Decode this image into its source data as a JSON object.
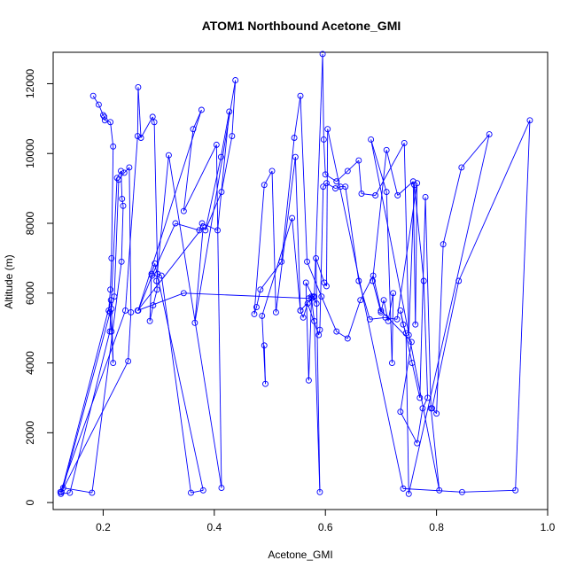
{
  "chart_data": {
    "type": "line",
    "title": "ATOM1 Northbound Acetone_GMI",
    "xlabel": "Acetone_GMI",
    "ylabel": "Altitude (m)",
    "xlim": [
      0.11,
      1.0
    ],
    "ylim": [
      -200,
      12900
    ],
    "x_ticks": [
      0.2,
      0.4,
      0.6,
      0.8,
      1.0
    ],
    "x_tick_labels": [
      "0.2",
      "0.4",
      "0.6",
      "0.8",
      "1.0"
    ],
    "y_ticks": [
      0,
      2000,
      4000,
      6000,
      8000,
      10000,
      12000
    ],
    "y_tick_labels": [
      "0",
      "2000",
      "4000",
      "6000",
      "8000",
      "10000",
      "12000"
    ],
    "grid": false,
    "legend": "none",
    "markers": "open-circle",
    "colors": {
      "series": "#0000ff",
      "axis": "#000000",
      "background": "#ffffff"
    },
    "series": [
      {
        "x": [
          0.182,
          0.192,
          0.2,
          0.202,
          0.203,
          0.213,
          0.218,
          0.215,
          0.213,
          0.21,
          0.212,
          0.215,
          0.218,
          0.215,
          0.214,
          0.124,
          0.14,
          0.212,
          0.225,
          0.232,
          0.234,
          0.236,
          0.233,
          0.18,
          0.128,
          0.22,
          0.228,
          0.238,
          0.247,
          0.25,
          0.245,
          0.125,
          0.123,
          0.24,
          0.262,
          0.263,
          0.268,
          0.289,
          0.292,
          0.298,
          0.305,
          0.358,
          0.38,
          0.293,
          0.287,
          0.284,
          0.29,
          0.297,
          0.296,
          0.318,
          0.413,
          0.404,
          0.345,
          0.362,
          0.377,
          0.263,
          0.288,
          0.33,
          0.373,
          0.378,
          0.406,
          0.427,
          0.412,
          0.384,
          0.413,
          0.432,
          0.438,
          0.365,
          0.38,
          0.262,
          0.345,
          0.57,
          0.575,
          0.58,
          0.595,
          0.597,
          0.6,
          0.62,
          0.64,
          0.66,
          0.665,
          0.69,
          0.742,
          0.75,
          0.76,
          0.777,
          0.784,
          0.775,
          0.765,
          0.735,
          0.755,
          0.7,
          0.686,
          0.663,
          0.64,
          0.62,
          0.593,
          0.567,
          0.555,
          0.544,
          0.521,
          0.483,
          0.476,
          0.472,
          0.49,
          0.504,
          0.511,
          0.546,
          0.555,
          0.578,
          0.584,
          0.565,
          0.57,
          0.575,
          0.58,
          0.59,
          0.583,
          0.598,
          0.602,
          0.604,
          0.74,
          0.846,
          0.942,
          0.968,
          0.84,
          0.792,
          0.8,
          0.812,
          0.845,
          0.895,
          0.75,
          0.745,
          0.74,
          0.735,
          0.756,
          0.77,
          0.78,
          0.79,
          0.805,
          0.682,
          0.71,
          0.72,
          0.722,
          0.713,
          0.705,
          0.7,
          0.685,
          0.71,
          0.73,
          0.758,
          0.762,
          0.765,
          0.729,
          0.708,
          0.68,
          0.66,
          0.636,
          0.627,
          0.618,
          0.602,
          0.596,
          0.59,
          0.588,
          0.568,
          0.56,
          0.555,
          0.54,
          0.486,
          0.492,
          0.49
        ],
        "y": [
          11650,
          11400,
          11100,
          11050,
          10950,
          10900,
          10200,
          7000,
          6100,
          5500,
          5450,
          4900,
          4000,
          5550,
          5800,
          250,
          280,
          4900,
          9300,
          9500,
          8700,
          8500,
          6900,
          280,
          420,
          5900,
          9250,
          9450,
          9600,
          5450,
          4050,
          300,
          300,
          5500,
          10500,
          11900,
          10450,
          11050,
          10900,
          6550,
          6500,
          280,
          350,
          6850,
          6550,
          5200,
          5650,
          6100,
          6350,
          9950,
          420,
          10250,
          8350,
          10700,
          11250,
          5500,
          6500,
          8000,
          7800,
          8000,
          7800,
          11200,
          9900,
          7800,
          8900,
          10500,
          12100,
          5150,
          7900,
          5500,
          6000,
          5850,
          5900,
          5900,
          12850,
          10400,
          9400,
          9200,
          9500,
          9800,
          8850,
          8800,
          10300,
          4800,
          9100,
          6350,
          3000,
          2700,
          1700,
          2600,
          4600,
          5500,
          6500,
          5800,
          4700,
          4900,
          5900,
          6900,
          11650,
          10450,
          6900,
          6100,
          5600,
          5400,
          9100,
          9500,
          5450,
          9900,
          5500,
          5900,
          5700,
          6300,
          3500,
          5850,
          5200,
          300,
          7000,
          6300,
          6200,
          10700,
          400,
          300,
          350,
          10950,
          6350,
          2700,
          2550,
          7400,
          9600,
          10550,
          250,
          4850,
          5100,
          5500,
          4000,
          3000,
          8750,
          2700,
          350,
          10400,
          8900,
          4000,
          6000,
          5200,
          5800,
          5450,
          6350,
          10100,
          8800,
          9200,
          5100,
          9150,
          5250,
          5300,
          5250,
          6350,
          9050,
          9050,
          9000,
          9150,
          9050,
          4950,
          4800,
          5700,
          5300,
          5500,
          8150,
          5350,
          3400,
          4500
        ]
      }
    ]
  }
}
